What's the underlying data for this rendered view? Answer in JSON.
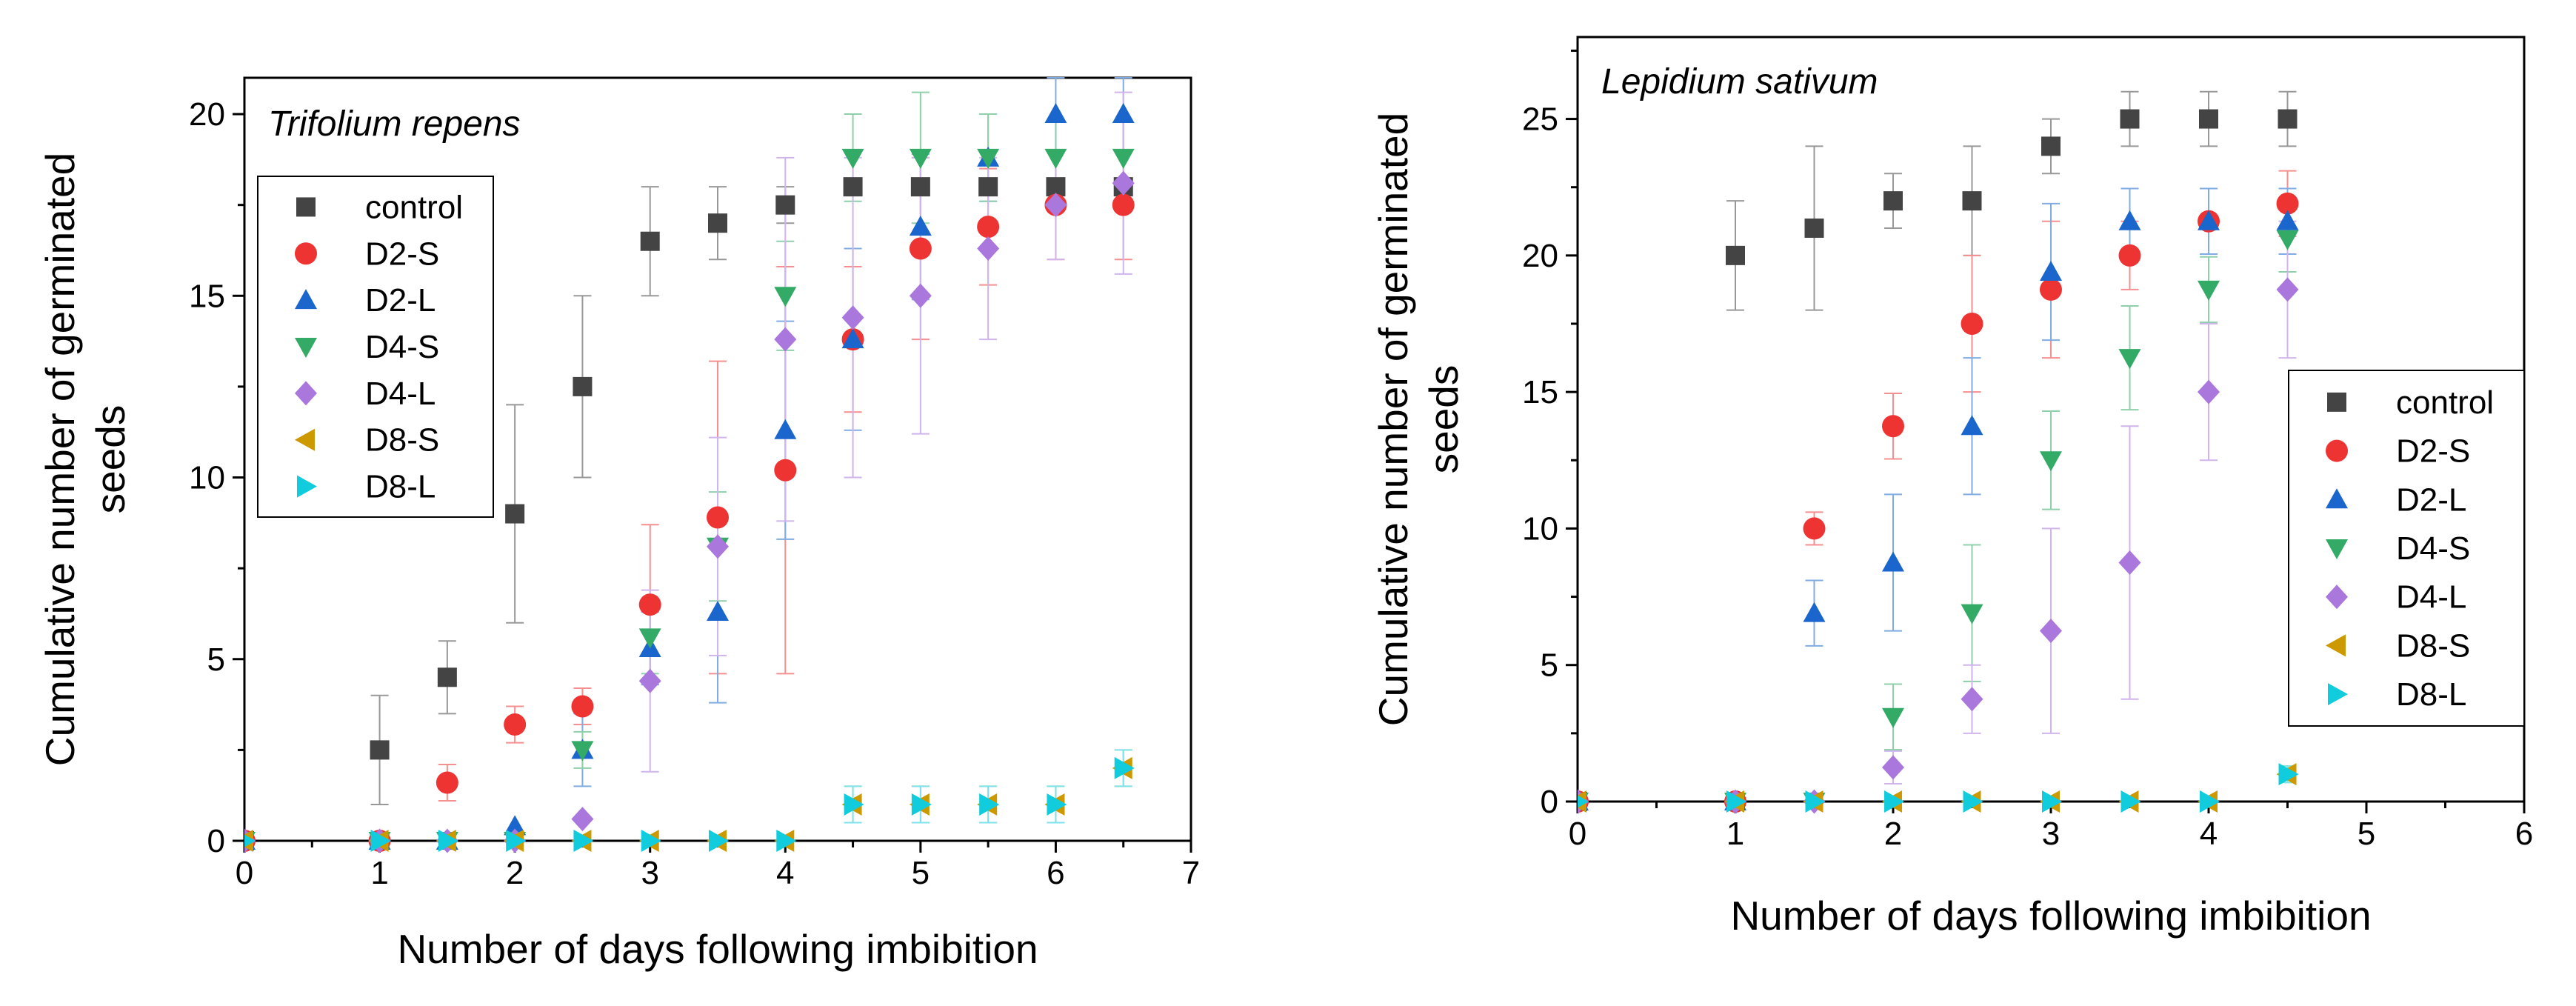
{
  "chart_data": [
    {
      "type": "scatter",
      "title": "Trifolium repens",
      "xlabel": "Number of days following imbibition",
      "ylabel": "Cumulative number of germinated seeds",
      "xlim": [
        0,
        7
      ],
      "ylim": [
        0,
        21
      ],
      "xticks": [
        0,
        1,
        2,
        3,
        4,
        5,
        6,
        7
      ],
      "yticks": [
        0,
        5,
        10,
        15,
        20
      ],
      "grid": false,
      "legend_position": "left",
      "x": [
        0,
        1,
        1.5,
        2,
        2.5,
        3,
        3.5,
        4,
        4.5,
        5,
        5.5,
        6,
        6.5
      ],
      "series": [
        {
          "name": "control",
          "marker": "square",
          "color": "#444444",
          "values": [
            0,
            2.5,
            4.5,
            9,
            12.5,
            16.5,
            17,
            17.5,
            18,
            18,
            18,
            18,
            18
          ],
          "errors": [
            0,
            1.5,
            1,
            3,
            2.5,
            1.5,
            1,
            0.5,
            0,
            0,
            0,
            0,
            0
          ]
        },
        {
          "name": "D2-S",
          "marker": "circle",
          "color": "#ee3333",
          "values": [
            0,
            0,
            1.6,
            3.2,
            3.7,
            6.5,
            8.9,
            10.2,
            13.8,
            16.3,
            16.9,
            17.5,
            17.5
          ],
          "errors": [
            0,
            0,
            0.5,
            0.5,
            0.5,
            2.2,
            4.3,
            5.6,
            2,
            2.5,
            1.6,
            1.5,
            1.5
          ]
        },
        {
          "name": "D2-L",
          "marker": "triangle-up",
          "color": "#1a66cc",
          "values": [
            0,
            0,
            0,
            0.4,
            2.5,
            5.3,
            6.3,
            11.3,
            13.8,
            16.9,
            18.8,
            20,
            20
          ],
          "errors": [
            0,
            0,
            0,
            0,
            1,
            1,
            2.5,
            3,
            2.5,
            2,
            1.2,
            1,
            1
          ]
        },
        {
          "name": "D4-S",
          "marker": "triangle-down",
          "color": "#33aa66",
          "values": [
            0,
            0,
            0,
            0,
            2.5,
            5.6,
            8.1,
            15,
            18.8,
            18.8,
            18.8,
            18.8,
            18.8
          ],
          "errors": [
            0,
            0,
            0,
            0,
            0.5,
            1,
            1.5,
            1.5,
            1.2,
            1.8,
            1.2,
            1,
            1
          ]
        },
        {
          "name": "D4-L",
          "marker": "diamond",
          "color": "#aa77dd",
          "values": [
            0,
            0,
            0,
            0,
            0.6,
            4.4,
            8.1,
            13.8,
            14.4,
            15,
            16.3,
            17.5,
            18.1
          ],
          "errors": [
            0,
            0,
            0,
            0,
            0,
            2.5,
            3,
            5,
            4.4,
            3.8,
            2.5,
            1.5,
            2.5
          ]
        },
        {
          "name": "D8-S",
          "marker": "triangle-left",
          "color": "#cc9900",
          "values": [
            0,
            0,
            0,
            0,
            0,
            0,
            0,
            0,
            1,
            1,
            1,
            1,
            2
          ],
          "errors": [
            0,
            0,
            0,
            0,
            0,
            0,
            0,
            0,
            0.5,
            0.5,
            0.5,
            0.5,
            0.5
          ]
        },
        {
          "name": "D8-L",
          "marker": "triangle-right",
          "color": "#11ccdd",
          "values": [
            0,
            0,
            0,
            0,
            0,
            0,
            0,
            0,
            1,
            1,
            1,
            1,
            2
          ],
          "errors": [
            0,
            0,
            0,
            0,
            0,
            0,
            0,
            0,
            0.5,
            0.5,
            0.5,
            0.5,
            0.5
          ]
        }
      ]
    },
    {
      "type": "scatter",
      "title": "Lepidium sativum",
      "xlabel": "Number of days following imbibition",
      "ylabel": "Cumulative number of germinated seeds",
      "xlim": [
        0,
        6
      ],
      "ylim": [
        0,
        28
      ],
      "xticks": [
        0,
        1,
        2,
        3,
        4,
        5,
        6
      ],
      "yticks": [
        0,
        5,
        10,
        15,
        20,
        25
      ],
      "grid": false,
      "legend_position": "bottom-right",
      "x": [
        0,
        1,
        1.5,
        2,
        2.5,
        3,
        3.5,
        4,
        4.5
      ],
      "series": [
        {
          "name": "control",
          "marker": "square",
          "color": "#444444",
          "values": [
            0,
            20,
            21,
            22,
            22,
            24,
            25,
            25,
            25
          ],
          "errors": [
            0,
            2,
            3,
            1,
            2,
            1,
            1,
            1,
            1
          ]
        },
        {
          "name": "D2-S",
          "marker": "circle",
          "color": "#ee3333",
          "values": [
            0,
            0,
            10,
            13.75,
            17.5,
            18.75,
            20,
            21.25,
            21.9
          ],
          "errors": [
            0,
            0,
            0.6,
            1.2,
            2.5,
            2.5,
            1.25,
            1.2,
            1.2
          ]
        },
        {
          "name": "D2-L",
          "marker": "triangle-up",
          "color": "#1a66cc",
          "values": [
            0,
            0,
            6.9,
            8.75,
            13.75,
            19.4,
            21.25,
            21.25,
            21.25
          ],
          "errors": [
            0,
            0,
            1.2,
            2.5,
            2.5,
            2.5,
            1.2,
            1.2,
            1.2
          ]
        },
        {
          "name": "D4-S",
          "marker": "triangle-down",
          "color": "#33aa66",
          "values": [
            0,
            0,
            0,
            3.1,
            6.9,
            12.5,
            16.25,
            18.75,
            20.6
          ],
          "errors": [
            0,
            0,
            0,
            1.2,
            2.5,
            1.8,
            1.9,
            1.2,
            1.2
          ]
        },
        {
          "name": "D4-L",
          "marker": "diamond",
          "color": "#aa77dd",
          "values": [
            0,
            0,
            0,
            1.25,
            3.75,
            6.25,
            8.75,
            15,
            18.75
          ],
          "errors": [
            0,
            0,
            0,
            0.6,
            1.25,
            3.75,
            5,
            2.5,
            2.5
          ]
        },
        {
          "name": "D8-S",
          "marker": "triangle-left",
          "color": "#cc9900",
          "values": [
            0,
            0,
            0,
            0,
            0,
            0,
            0,
            0,
            1
          ],
          "errors": [
            0,
            0,
            0,
            0,
            0,
            0,
            0,
            0,
            0.3
          ]
        },
        {
          "name": "D8-L",
          "marker": "triangle-right",
          "color": "#11ccdd",
          "values": [
            0,
            0,
            0,
            0,
            0,
            0,
            0,
            0,
            1
          ],
          "errors": [
            0,
            0,
            0,
            0,
            0,
            0,
            0,
            0,
            0.3
          ]
        }
      ]
    }
  ]
}
